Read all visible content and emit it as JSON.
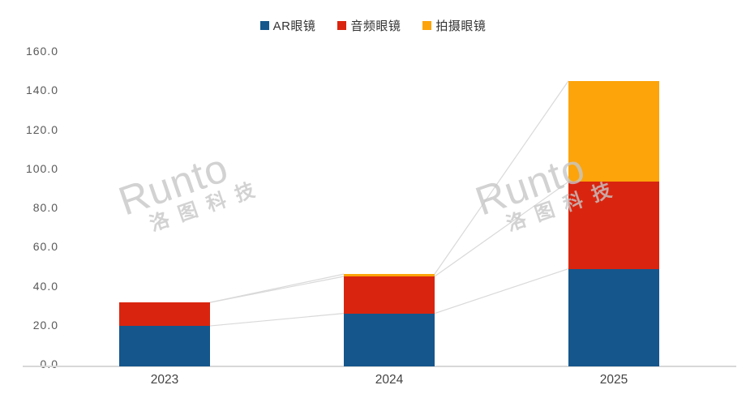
{
  "chart_data": {
    "type": "bar",
    "subtype": "stacked-column",
    "categories": [
      "2023",
      "2024",
      "2025"
    ],
    "series": [
      {
        "name": "AR眼镜",
        "color": "#15568C",
        "values": [
          20.7,
          27.1,
          49.9
        ]
      },
      {
        "name": "音频眼镜",
        "color": "#D9250F",
        "values": [
          12.0,
          18.9,
          44.5
        ]
      },
      {
        "name": "拍摄眼镜",
        "color": "#FCA40A",
        "values": [
          0,
          1.2,
          51.6
        ]
      }
    ],
    "totals": [
      32.7,
      47.2,
      146.0
    ],
    "ylim": [
      0,
      160
    ],
    "ytick_step": 20,
    "yticks": [
      "0.0",
      "20.0",
      "40.0",
      "60.0",
      "80.0",
      "100.0",
      "120.0",
      "140.0",
      "160.0"
    ],
    "gridlines": false,
    "legend_position": "top-center",
    "series_connector_lines": true,
    "title": "",
    "xlabel": "",
    "ylabel": ""
  },
  "legend": {
    "items": [
      "AR眼镜",
      "音频眼镜",
      "拍摄眼镜"
    ]
  },
  "watermark": {
    "brand": "Runto",
    "company": "洛图科技"
  },
  "colors": {
    "ar_blue": "#15568C",
    "audio_red": "#D9250F",
    "camera_orange": "#FCA40A",
    "axis_line": "#d8d8d8",
    "connector_line": "#d9d9d9",
    "ytick_text": "#595959",
    "xtick_text": "#444444",
    "watermark_gray": "#c7c7c7"
  }
}
